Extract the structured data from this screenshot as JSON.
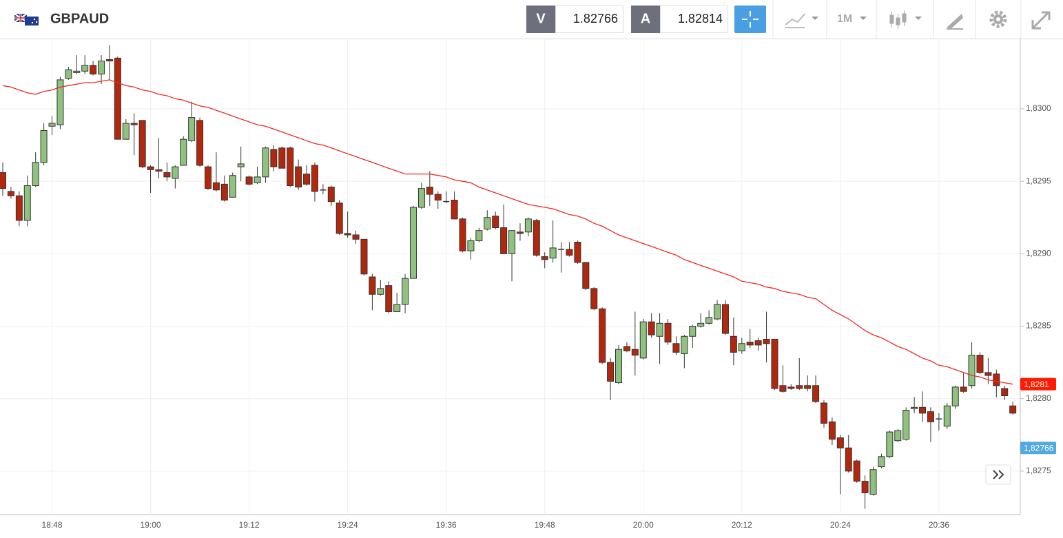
{
  "header": {
    "symbol": "GBPAUD",
    "sell_label": "V",
    "sell_price": 1.82766,
    "buy_label": "A",
    "buy_price": 1.82814,
    "timeframe": "1M"
  },
  "chart_data": {
    "type": "candlestick",
    "x": [
      null,
      null,
      null,
      null,
      null,
      null,
      "18:48",
      null,
      null,
      null,
      null,
      null,
      null,
      null,
      null,
      null,
      null,
      null,
      "19:00",
      null,
      null,
      null,
      null,
      null,
      null,
      null,
      null,
      null,
      null,
      null,
      "19:12",
      null,
      null,
      null,
      null,
      null,
      null,
      null,
      null,
      null,
      null,
      null,
      "19:24",
      null,
      null,
      null,
      null,
      null,
      null,
      null,
      null,
      null,
      null,
      null,
      "19:36",
      null,
      null,
      null,
      null,
      null,
      null,
      null,
      null,
      null,
      null,
      null,
      "19:48",
      null,
      null,
      null,
      null,
      null,
      null,
      null,
      null,
      null,
      null,
      null,
      "20:00",
      null,
      null,
      null,
      null,
      null,
      null,
      null,
      null,
      null,
      null,
      null,
      "20:12",
      null,
      null,
      null,
      null,
      null,
      null,
      null,
      null,
      null,
      null,
      null,
      "20:24",
      null,
      null,
      null,
      null,
      null,
      null,
      null,
      null,
      null,
      null,
      null,
      "20:36",
      null,
      null,
      null,
      null,
      null,
      null,
      null,
      null,
      null
    ],
    "open": [
      1.82956,
      1.82943,
      1.8294,
      1.82923,
      1.82947,
      1.82963,
      1.82988,
      1.82989,
      1.83021,
      1.83025,
      1.83026,
      1.8303,
      1.83024,
      1.83034,
      1.83035,
      1.82979,
      1.8299,
      1.82992,
      1.8296,
      1.82958,
      1.82956,
      1.82952,
      1.82961,
      1.82978,
      1.82992,
      1.8296,
      1.82949,
      1.82948,
      1.82939,
      1.8296,
      1.82953,
      1.82949,
      1.82953,
      1.82972,
      1.82973,
      1.82973,
      1.8296,
      1.82955,
      1.82961,
      1.82944,
      1.82946,
      1.82935,
      1.82914,
      1.82913,
      1.8291,
      1.82884,
      1.82872,
      1.82878,
      1.8286,
      1.82865,
      1.82883,
      1.82932,
      1.82946,
      1.82941,
      1.82936,
      1.82937,
      1.82924,
      1.82902,
      1.82909,
      1.82917,
      1.82926,
      1.82918,
      1.829,
      1.82915,
      1.82915,
      1.82923,
      1.82898,
      1.82897,
      1.82903,
      1.82903,
      1.82908,
      1.82894,
      1.82876,
      1.82862,
      1.82825,
      1.82811,
      1.82836,
      1.82834,
      1.82828,
      1.82853,
      1.82843,
      1.82852,
      1.82838,
      1.82831,
      1.82843,
      1.8285,
      1.82852,
      1.82855,
      1.82865,
      1.82843,
      1.82833,
      1.82839,
      1.8284,
      1.82841,
      1.82841,
      1.82809,
      1.82808,
      1.82809,
      1.82809,
      1.82809,
      1.82797,
      1.82784,
      1.82773,
      1.82766,
      1.82757,
      1.82743,
      1.82734,
      1.82753,
      1.8276,
      1.82771,
      1.82772,
      1.82793,
      1.82794,
      1.82791,
      1.82786,
      1.82781,
      1.82795,
      1.82808,
      1.82809,
      1.8283,
      1.82818,
      1.82817,
      1.82807,
      1.82795
    ],
    "high": [
      1.82963,
      1.82946,
      1.82943,
      1.82954,
      1.8297,
      1.8299,
      1.82995,
      1.83022,
      1.83029,
      1.83037,
      1.83037,
      1.83033,
      1.83037,
      1.83044,
      1.83036,
      1.82993,
      1.82997,
      1.82992,
      1.82961,
      1.8298,
      1.82963,
      1.82961,
      1.82981,
      1.83005,
      1.82994,
      1.82961,
      1.8297,
      1.82954,
      1.82956,
      1.82974,
      1.82954,
      1.8296,
      1.82974,
      1.82975,
      1.82974,
      1.82974,
      1.82965,
      1.82961,
      1.82963,
      1.82948,
      1.82947,
      1.82937,
      1.82929,
      1.82916,
      1.8291,
      1.82886,
      1.82882,
      1.82881,
      1.82873,
      1.82886,
      1.82933,
      1.82949,
      1.82957,
      1.82943,
      1.82943,
      1.82943,
      1.82925,
      1.82911,
      1.82918,
      1.8293,
      1.82929,
      1.82934,
      1.82916,
      1.82921,
      1.82925,
      1.82924,
      1.82901,
      1.82923,
      1.82908,
      1.82908,
      1.82909,
      1.82894,
      1.82877,
      1.82863,
      1.82828,
      1.82837,
      1.82839,
      1.8286,
      1.82855,
      1.82859,
      1.82859,
      1.82855,
      1.82843,
      1.82844,
      1.82851,
      1.82859,
      1.82861,
      1.82868,
      1.82868,
      1.82856,
      1.82842,
      1.82848,
      1.82842,
      1.8286,
      1.82841,
      1.82823,
      1.8281,
      1.82828,
      1.82816,
      1.82816,
      1.82799,
      1.82787,
      1.82775,
      1.82775,
      1.82758,
      1.82747,
      1.82753,
      1.82762,
      1.82778,
      1.82779,
      1.82794,
      1.82801,
      1.82805,
      1.82794,
      1.8279,
      1.82797,
      1.82809,
      1.82818,
      1.82839,
      1.82832,
      1.82828,
      1.8282,
      1.82809,
      1.82798
    ],
    "low": [
      1.8294,
      1.82938,
      1.82919,
      1.82919,
      1.82946,
      1.82961,
      1.82982,
      1.82986,
      1.8302,
      1.83024,
      1.83024,
      1.83023,
      1.83017,
      1.8302,
      1.82979,
      1.82979,
      1.82968,
      1.82959,
      1.82942,
      1.82952,
      1.8295,
      1.82945,
      1.82961,
      1.82977,
      1.8296,
      1.82944,
      1.82943,
      1.82936,
      1.82939,
      1.8295,
      1.82947,
      1.82948,
      1.82949,
      1.82957,
      1.82959,
      1.82946,
      1.82944,
      1.82947,
      1.82936,
      1.82941,
      1.82933,
      1.82913,
      1.82911,
      1.82907,
      1.82885,
      1.82861,
      1.82871,
      1.82859,
      1.8286,
      1.82859,
      1.82883,
      1.82931,
      1.82933,
      1.82931,
      1.82935,
      1.82924,
      1.82901,
      1.82896,
      1.82908,
      1.82916,
      1.82917,
      1.829,
      1.82881,
      1.82909,
      1.82912,
      1.82898,
      1.8289,
      1.82894,
      1.82887,
      1.82898,
      1.82893,
      1.82875,
      1.82861,
      1.82824,
      1.82799,
      1.8281,
      1.82832,
      1.82816,
      1.82827,
      1.82842,
      1.82824,
      1.82837,
      1.8283,
      1.82821,
      1.82835,
      1.82849,
      1.82851,
      1.82854,
      1.82844,
      1.82823,
      1.82831,
      1.82835,
      1.82833,
      1.82825,
      1.82806,
      1.82804,
      1.82806,
      1.82806,
      1.82805,
      1.82797,
      1.8278,
      1.82768,
      1.82734,
      1.82749,
      1.82742,
      1.82724,
      1.82733,
      1.82752,
      1.82759,
      1.8277,
      1.82771,
      1.8279,
      1.82784,
      1.8277,
      1.82778,
      1.82779,
      1.82793,
      1.82804,
      1.82807,
      1.82817,
      1.8281,
      1.82801,
      1.82799,
      1.82789
    ],
    "close": [
      1.82945,
      1.8294,
      1.82923,
      1.82947,
      1.82963,
      1.82985,
      1.8299,
      1.8302,
      1.83027,
      1.83026,
      1.8303,
      1.83024,
      1.83033,
      1.83033,
      1.82979,
      1.8299,
      1.82989,
      1.8296,
      1.82958,
      1.82957,
      1.82953,
      1.8296,
      1.82979,
      1.82994,
      1.82961,
      1.82945,
      1.82944,
      1.82937,
      1.82954,
      1.82962,
      1.82948,
      1.82953,
      1.82973,
      1.8296,
      1.82959,
      1.82947,
      1.82946,
      1.82948,
      1.82943,
      1.82944,
      1.82936,
      1.82914,
      1.82913,
      1.8291,
      1.82886,
      1.82872,
      1.82876,
      1.8286,
      1.82865,
      1.82883,
      1.82932,
      1.82945,
      1.82941,
      1.82937,
      1.82936,
      1.82924,
      1.82902,
      1.82909,
      1.82916,
      1.82925,
      1.82918,
      1.829,
      1.82916,
      1.82914,
      1.82924,
      1.82899,
      1.82896,
      1.82904,
      1.82903,
      1.82899,
      1.82894,
      1.82876,
      1.82862,
      1.82825,
      1.82812,
      1.82834,
      1.82833,
      1.8283,
      1.82853,
      1.82844,
      1.82852,
      1.82839,
      1.82832,
      1.82843,
      1.8285,
      1.82852,
      1.82856,
      1.82865,
      1.82845,
      1.82832,
      1.82838,
      1.82837,
      1.82837,
      1.82838,
      1.82807,
      1.82805,
      1.82807,
      1.82807,
      1.82807,
      1.82798,
      1.82783,
      1.82772,
      1.82766,
      1.8275,
      1.82743,
      1.82735,
      1.82751,
      1.8276,
      1.82777,
      1.82778,
      1.82792,
      1.82794,
      1.8279,
      1.82784,
      1.82786,
      1.82795,
      1.82808,
      1.82805,
      1.8283,
      1.82818,
      1.82816,
      1.82809,
      1.82802,
      1.8279
    ],
    "up_color": "#8fc27e",
    "down_color": "#b3270d",
    "ma": {
      "color": "#f02a24",
      "values": [
        1.83016,
        1.83015,
        1.83013,
        1.83011,
        1.8301,
        1.83012,
        1.83013,
        1.83015,
        1.83016,
        1.83017,
        1.83018,
        1.83018,
        1.83019,
        1.8302,
        1.83018,
        1.83016,
        1.83015,
        1.83013,
        1.83012,
        1.8301,
        1.83009,
        1.83007,
        1.83006,
        1.83004,
        1.83002,
        1.83001,
        1.82999,
        1.82997,
        1.82995,
        1.82993,
        1.82991,
        1.82989,
        1.82988,
        1.82986,
        1.82984,
        1.82982,
        1.8298,
        1.82978,
        1.82976,
        1.82975,
        1.82973,
        1.82971,
        1.82969,
        1.82967,
        1.82965,
        1.82963,
        1.82961,
        1.82959,
        1.82957,
        1.82955,
        1.82955,
        1.82955,
        1.82955,
        1.82954,
        1.82953,
        1.82951,
        1.8295,
        1.82949,
        1.82946,
        1.82944,
        1.82942,
        1.8294,
        1.82938,
        1.82936,
        1.82934,
        1.82933,
        1.82932,
        1.82931,
        1.82929,
        1.82927,
        1.82926,
        1.82924,
        1.82921,
        1.82919,
        1.82916,
        1.82913,
        1.82911,
        1.82909,
        1.82907,
        1.82905,
        1.82903,
        1.82901,
        1.82899,
        1.82896,
        1.82894,
        1.82892,
        1.8289,
        1.82888,
        1.82886,
        1.82884,
        1.82881,
        1.8288,
        1.82879,
        1.82877,
        1.82876,
        1.82874,
        1.82873,
        1.82872,
        1.8287,
        1.82869,
        1.82865,
        1.82861,
        1.82858,
        1.82855,
        1.82851,
        1.82847,
        1.82844,
        1.82842,
        1.82839,
        1.82836,
        1.82834,
        1.82831,
        1.82828,
        1.82826,
        1.82823,
        1.82822,
        1.8282,
        1.82818,
        1.82816,
        1.82815,
        1.82813,
        1.82812,
        1.82811,
        1.8281
      ]
    },
    "price_labels": [
      {
        "value": 1.8281,
        "label": "1,8281",
        "color": "#ff1a00"
      },
      {
        "value": 1.82766,
        "label": "1,82766",
        "color": "#52a9dd"
      }
    ],
    "ylim": [
      1.8272,
      1.83048
    ],
    "yticks": [
      {
        "value": 1.8275,
        "label": "1,8275"
      },
      {
        "value": 1.828,
        "label": "1,8280"
      },
      {
        "value": 1.8285,
        "label": "1,8285"
      },
      {
        "value": 1.829,
        "label": "1,8290"
      },
      {
        "value": 1.8295,
        "label": "1,8295"
      },
      {
        "value": 1.83,
        "label": "1,8300"
      }
    ],
    "grid": true
  }
}
